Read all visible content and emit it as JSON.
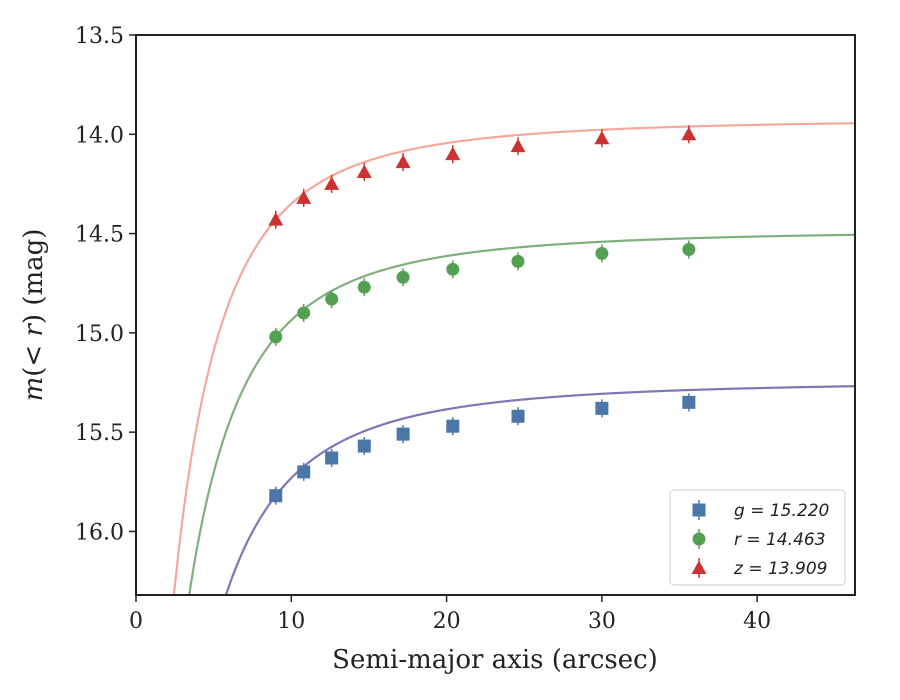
{
  "chart_data": {
    "type": "scatter",
    "title": "",
    "xlabel": "Semi-major axis (arcsec)",
    "ylabel": "m(< r) (mag)",
    "xlim": [
      0,
      46.3
    ],
    "ylim": [
      16.32,
      13.5
    ],
    "y_inverted": true,
    "xticks": [
      0,
      10,
      20,
      30,
      40
    ],
    "yticks": [
      13.5,
      14.0,
      14.5,
      15.0,
      15.5,
      16.0
    ],
    "xtick_labels": [
      "0",
      "10",
      "20",
      "30",
      "40"
    ],
    "ytick_labels": [
      "13.5",
      "14.0",
      "14.5",
      "15.0",
      "15.5",
      "16.0"
    ],
    "grid": false,
    "legend_position": "bottom-right",
    "x": [
      9.0,
      10.8,
      12.6,
      14.7,
      17.2,
      20.4,
      24.6,
      30.0,
      35.6
    ],
    "series": [
      {
        "name": "g",
        "label": "g = 15.220",
        "marker": "square",
        "color": "#4a77a8",
        "curve_color": "#7a78b6",
        "values": [
          15.82,
          15.7,
          15.63,
          15.57,
          15.51,
          15.47,
          15.42,
          15.38,
          15.35
        ],
        "fit_asymptote": 15.24
      },
      {
        "name": "r",
        "label": "r = 14.463",
        "marker": "circle",
        "color": "#54a052",
        "curve_color": "#7db07e",
        "values": [
          15.02,
          14.9,
          14.83,
          14.77,
          14.72,
          14.68,
          14.64,
          14.6,
          14.58
        ],
        "fit_asymptote": 14.48
      },
      {
        "name": "z",
        "label": "z = 13.909",
        "marker": "triangle",
        "color": "#cc3232",
        "curve_color": "#f5a89a",
        "values": [
          14.43,
          14.32,
          14.25,
          14.19,
          14.14,
          14.1,
          14.06,
          14.02,
          14.0
        ],
        "fit_asymptote": 13.92
      }
    ]
  }
}
